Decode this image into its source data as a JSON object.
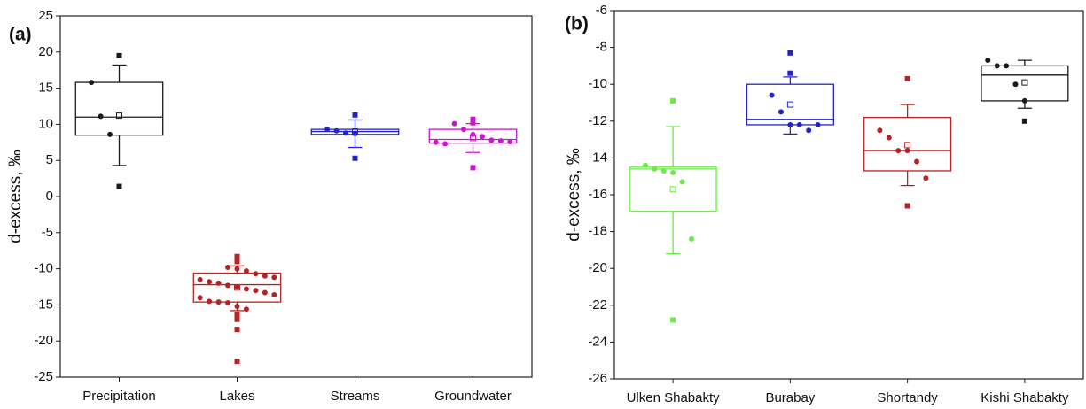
{
  "chart_data": [
    {
      "type": "box",
      "panel": "(a)",
      "ylabel": "d-excess, ‰",
      "categories": [
        "Precipitation",
        "Lakes",
        "Streams",
        "Groundwater"
      ],
      "ylim": [
        -25,
        25
      ],
      "yticks": [
        -25,
        -20,
        -15,
        -10,
        -5,
        0,
        5,
        10,
        15,
        20,
        25
      ],
      "boxes": [
        {
          "color": "#1a1a1a",
          "q1": 8.5,
          "median": 11,
          "q3": 15.8,
          "whisker_low": 4.3,
          "whisker_high": 18.2,
          "mean": 11.2,
          "points": [
            19.5,
            15.8,
            11.1,
            8.6,
            1.4
          ]
        },
        {
          "color": "#b52424",
          "q1": -14.6,
          "median": -12.2,
          "q3": -10.6,
          "whisker_low": -15.8,
          "whisker_high": -9.6,
          "mean": -12.6,
          "points": [
            -8.3,
            -8.8,
            -9.0,
            -9.8,
            -10.0,
            -10.3,
            -10.7,
            -11.0,
            -11.2,
            -11.5,
            -11.8,
            -12.0,
            -12.3,
            -12.5,
            -12.8,
            -13.0,
            -13.3,
            -13.6,
            -14.0,
            -14.5,
            -14.6,
            -14.7,
            -15.2,
            -15.6,
            -16.3,
            -17.0,
            -18.4,
            -22.8
          ]
        },
        {
          "color": "#2323c8",
          "q1": 8.6,
          "median": 9.0,
          "q3": 9.3,
          "whisker_low": 6.8,
          "whisker_high": 10.6,
          "mean": 9.0,
          "points": [
            11.3,
            9.3,
            9.1,
            8.8,
            8.7,
            5.3
          ]
        },
        {
          "color": "#cc16cc",
          "q1": 7.4,
          "median": 7.9,
          "q3": 9.3,
          "whisker_low": 6.1,
          "whisker_high": 10.1,
          "mean": 8.1,
          "points": [
            10.7,
            10.2,
            10.1,
            9.3,
            8.6,
            8.3,
            7.8,
            7.7,
            7.6,
            7.5,
            7.3,
            4.0
          ]
        }
      ]
    },
    {
      "type": "box",
      "panel": "(b)",
      "ylabel": "d-excess, ‰",
      "categories": [
        "Ulken Shabakty",
        "Burabay",
        "Shortandy",
        "Kishi Shabakty"
      ],
      "ylim": [
        -26,
        -6
      ],
      "yticks": [
        -26,
        -24,
        -22,
        -20,
        -18,
        -16,
        -14,
        -12,
        -10,
        -8,
        -6
      ],
      "boxes": [
        {
          "color": "#6ee84a",
          "q1": -16.9,
          "median": -14.6,
          "q3": -14.5,
          "whisker_low": -19.2,
          "whisker_high": -12.3,
          "mean": -15.7,
          "points": [
            -10.9,
            -14.4,
            -14.6,
            -14.7,
            -14.8,
            -15.3,
            -18.4,
            -22.8
          ]
        },
        {
          "color": "#2323c8",
          "q1": -12.2,
          "median": -11.9,
          "q3": -10.0,
          "whisker_low": -12.7,
          "whisker_high": -9.6,
          "mean": -11.1,
          "points": [
            -8.3,
            -9.4,
            -10.6,
            -11.5,
            -12.2,
            -12.2,
            -12.5,
            -12.2
          ]
        },
        {
          "color": "#b52424",
          "q1": -14.7,
          "median": -13.6,
          "q3": -11.8,
          "whisker_low": -15.5,
          "whisker_high": -11.1,
          "mean": -13.3,
          "points": [
            -9.7,
            -12.5,
            -12.9,
            -13.6,
            -13.6,
            -14.2,
            -15.1,
            -16.6
          ]
        },
        {
          "color": "#1a1a1a",
          "q1": -10.9,
          "median": -9.5,
          "q3": -9.0,
          "whisker_low": -11.3,
          "whisker_high": -8.7,
          "mean": -9.9,
          "points": [
            -8.7,
            -9.0,
            -9.0,
            -10.0,
            -10.9,
            -12.0
          ]
        }
      ]
    }
  ]
}
